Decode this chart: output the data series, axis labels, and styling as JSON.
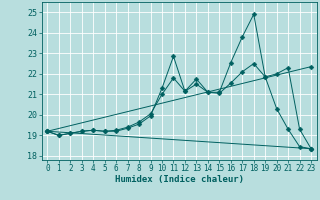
{
  "xlabel": "Humidex (Indice chaleur)",
  "xlim": [
    -0.5,
    23.5
  ],
  "ylim": [
    17.8,
    25.5
  ],
  "yticks": [
    18,
    19,
    20,
    21,
    22,
    23,
    24,
    25
  ],
  "xticks": [
    0,
    1,
    2,
    3,
    4,
    5,
    6,
    7,
    8,
    9,
    10,
    11,
    12,
    13,
    14,
    15,
    16,
    17,
    18,
    19,
    20,
    21,
    22,
    23
  ],
  "bg_color": "#b8dede",
  "line_color": "#006060",
  "grid_color": "#d0ecec",
  "series": [
    {
      "x": [
        0,
        1,
        2,
        3,
        4,
        5,
        6,
        7,
        8,
        9,
        10,
        11,
        12,
        13,
        14,
        15,
        16,
        17,
        18,
        19,
        20,
        21,
        22,
        23
      ],
      "y": [
        19.2,
        19.0,
        19.1,
        19.2,
        19.25,
        19.2,
        19.2,
        19.35,
        19.55,
        19.95,
        21.3,
        22.85,
        21.15,
        21.75,
        21.1,
        21.1,
        22.55,
        23.8,
        24.9,
        21.85,
        20.3,
        19.3,
        18.45,
        18.35
      ],
      "marker": "D",
      "ms": 2.5
    },
    {
      "x": [
        0,
        1,
        2,
        3,
        4,
        5,
        6,
        7,
        8,
        9,
        10,
        11,
        12,
        13,
        14,
        15,
        16,
        17,
        18,
        19,
        20,
        21,
        22,
        23
      ],
      "y": [
        19.2,
        19.0,
        19.1,
        19.2,
        19.25,
        19.2,
        19.25,
        19.4,
        19.65,
        20.05,
        21.0,
        21.8,
        21.15,
        21.5,
        21.1,
        21.05,
        21.55,
        22.1,
        22.5,
        21.85,
        22.0,
        22.3,
        19.3,
        18.35
      ],
      "marker": "D",
      "ms": 2.5
    },
    {
      "x": [
        0,
        23
      ],
      "y": [
        19.2,
        22.35
      ],
      "marker": "D",
      "ms": 2.5
    },
    {
      "x": [
        0,
        23
      ],
      "y": [
        19.2,
        18.35
      ],
      "marker": "D",
      "ms": 2.5
    }
  ]
}
